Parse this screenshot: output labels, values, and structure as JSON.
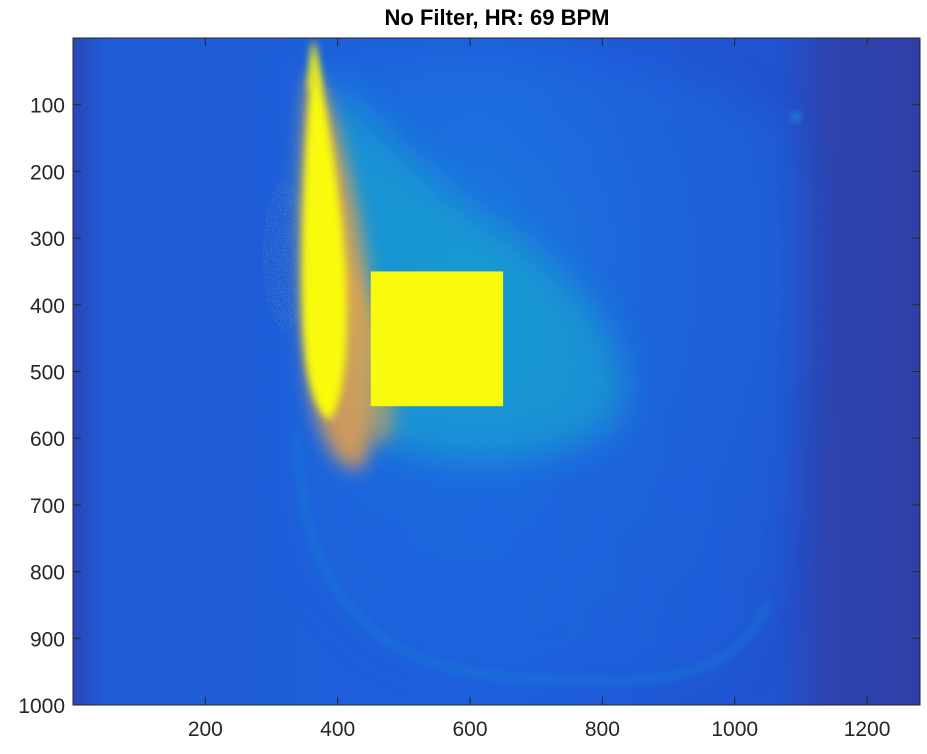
{
  "chart_data": {
    "type": "heatmap",
    "title": "No Filter, HR: 69 BPM",
    "xlabel": "",
    "ylabel": "",
    "xlim": [
      0,
      1280
    ],
    "ylim": [
      0,
      1000
    ],
    "y_direction": "reversed",
    "x_ticks": [
      200,
      400,
      600,
      800,
      1000,
      1200
    ],
    "y_ticks": [
      100,
      200,
      300,
      400,
      500,
      600,
      700,
      800,
      900,
      1000
    ],
    "colormap": "parula",
    "colors": {
      "background_blue": "#1f5fdd",
      "dark_blue": "#2f3fa8",
      "cyan": "#12b4cc",
      "orange": "#f7a540",
      "yellow": "#f9fb0e"
    },
    "annotations": [
      {
        "shape": "rectangle",
        "color": "#f9fb0e",
        "x_range": [
          450,
          650
        ],
        "y_range": [
          350,
          552
        ]
      }
    ]
  }
}
